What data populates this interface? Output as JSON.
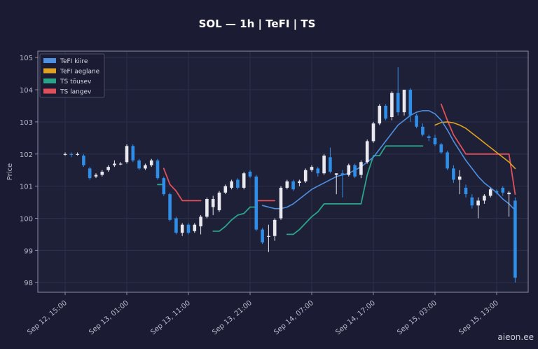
{
  "chart_data": {
    "type": "candlestick",
    "title": "SOL — 1h  |  TeFI  |  TS",
    "ylabel": "Price",
    "ylim": [
      97.7,
      105.2
    ],
    "yticks": [
      98,
      99,
      100,
      101,
      102,
      103,
      104,
      105
    ],
    "grid": true,
    "legend_placement": "top-left",
    "watermark": "aieon.ee",
    "x_ticks": [
      {
        "i": 0,
        "label": "Sep 12, 15:00"
      },
      {
        "i": 10,
        "label": "Sep 13, 01:00"
      },
      {
        "i": 20,
        "label": "Sep 13, 11:00"
      },
      {
        "i": 30,
        "label": "Sep 13, 21:00"
      },
      {
        "i": 40,
        "label": "Sep 14, 07:00"
      },
      {
        "i": 50,
        "label": "Sep 14, 17:00"
      },
      {
        "i": 60,
        "label": "Sep 15, 03:00"
      },
      {
        "i": 70,
        "label": "Sep 15, 13:00"
      }
    ],
    "legend": [
      {
        "key": "tefi_fast",
        "label": "TeFI kiire",
        "color": "#4f8fe0"
      },
      {
        "key": "tefi_slow",
        "label": "TeFI aeglane",
        "color": "#e0a020"
      },
      {
        "key": "ts_up",
        "label": "TS tõusev",
        "color": "#2aa58a"
      },
      {
        "key": "ts_down",
        "label": "TS langev",
        "color": "#e0505a"
      }
    ],
    "colors": {
      "up": "#e8e8ee",
      "down": "#2f8ee8"
    },
    "candles": [
      [
        0,
        102.0,
        102.05,
        101.95,
        102.0
      ],
      [
        1,
        102.0,
        102.05,
        101.9,
        101.98
      ],
      [
        2,
        102.0,
        102.05,
        101.95,
        102.0
      ],
      [
        3,
        101.95,
        102.0,
        101.6,
        101.65
      ],
      [
        4,
        101.55,
        101.6,
        101.2,
        101.25
      ],
      [
        5,
        101.3,
        101.4,
        101.25,
        101.35
      ],
      [
        6,
        101.35,
        101.5,
        101.3,
        101.45
      ],
      [
        7,
        101.5,
        101.65,
        101.45,
        101.6
      ],
      [
        8,
        101.65,
        101.8,
        101.6,
        101.7
      ],
      [
        9,
        101.7,
        101.75,
        101.65,
        101.7
      ],
      [
        10,
        101.75,
        102.3,
        101.7,
        102.25
      ],
      [
        11,
        102.25,
        102.3,
        101.75,
        101.8
      ],
      [
        12,
        101.8,
        101.85,
        101.5,
        101.55
      ],
      [
        13,
        101.55,
        101.7,
        101.5,
        101.65
      ],
      [
        14,
        101.65,
        101.85,
        101.6,
        101.8
      ],
      [
        15,
        101.8,
        101.85,
        101.2,
        101.25
      ],
      [
        16,
        101.25,
        101.3,
        100.7,
        100.75
      ],
      [
        17,
        100.75,
        100.8,
        99.9,
        99.95
      ],
      [
        18,
        100.0,
        100.05,
        99.5,
        99.55
      ],
      [
        19,
        99.55,
        99.85,
        99.45,
        99.8
      ],
      [
        20,
        99.8,
        99.85,
        99.5,
        99.55
      ],
      [
        21,
        99.6,
        99.85,
        99.55,
        99.8
      ],
      [
        22,
        99.75,
        100.1,
        99.5,
        100.05
      ],
      [
        23,
        100.05,
        100.65,
        100.0,
        100.6
      ],
      [
        24,
        100.35,
        100.7,
        100.1,
        100.6
      ],
      [
        25,
        100.25,
        100.85,
        100.2,
        100.8
      ],
      [
        26,
        100.8,
        101.05,
        100.75,
        101.0
      ],
      [
        27,
        100.95,
        101.2,
        100.9,
        101.15
      ],
      [
        28,
        101.2,
        101.25,
        100.9,
        100.95
      ],
      [
        29,
        100.95,
        101.45,
        100.9,
        101.4
      ],
      [
        30,
        101.45,
        101.5,
        101.25,
        101.3
      ],
      [
        31,
        101.3,
        101.35,
        99.6,
        99.65
      ],
      [
        32,
        99.65,
        99.7,
        99.2,
        99.25
      ],
      [
        33,
        99.45,
        99.8,
        98.95,
        99.45
      ],
      [
        34,
        99.45,
        100.0,
        99.3,
        99.95
      ],
      [
        35,
        100.0,
        101.0,
        99.95,
        100.95
      ],
      [
        36,
        100.95,
        101.2,
        100.9,
        101.15
      ],
      [
        37,
        101.15,
        101.2,
        100.85,
        100.9
      ],
      [
        38,
        101.1,
        101.2,
        101.0,
        101.15
      ],
      [
        39,
        101.15,
        101.55,
        101.1,
        101.5
      ],
      [
        40,
        101.5,
        101.65,
        101.45,
        101.6
      ],
      [
        41,
        101.55,
        101.6,
        101.3,
        101.4
      ],
      [
        42,
        101.4,
        102.0,
        101.35,
        101.95
      ],
      [
        43,
        101.9,
        102.2,
        101.4,
        101.45
      ],
      [
        44,
        101.35,
        101.4,
        100.75,
        101.4
      ],
      [
        45,
        101.4,
        101.5,
        100.65,
        101.35
      ],
      [
        46,
        101.35,
        101.7,
        101.3,
        101.65
      ],
      [
        47,
        101.65,
        101.7,
        101.25,
        101.3
      ],
      [
        48,
        101.35,
        101.8,
        101.25,
        101.75
      ],
      [
        49,
        101.75,
        102.45,
        101.7,
        102.4
      ],
      [
        50,
        102.4,
        103.0,
        102.35,
        102.95
      ],
      [
        51,
        102.95,
        103.55,
        102.9,
        103.5
      ],
      [
        52,
        103.5,
        103.55,
        103.05,
        103.1
      ],
      [
        53,
        103.15,
        103.95,
        103.05,
        103.9
      ],
      [
        54,
        103.9,
        104.7,
        103.2,
        103.3
      ],
      [
        55,
        103.3,
        104.0,
        103.2,
        104.0
      ],
      [
        56,
        104.0,
        104.05,
        103.0,
        103.2
      ],
      [
        57,
        103.2,
        103.25,
        102.8,
        102.85
      ],
      [
        58,
        102.85,
        102.95,
        102.55,
        102.6
      ],
      [
        59,
        102.55,
        102.6,
        102.4,
        102.5
      ],
      [
        60,
        102.5,
        102.6,
        102.25,
        102.3
      ],
      [
        61,
        102.3,
        102.35,
        102.0,
        102.05
      ],
      [
        62,
        102.05,
        102.1,
        101.5,
        101.55
      ],
      [
        63,
        101.55,
        101.65,
        101.1,
        101.2
      ],
      [
        64,
        101.2,
        101.5,
        100.75,
        101.3
      ],
      [
        65,
        100.95,
        101.05,
        100.65,
        100.75
      ],
      [
        66,
        100.65,
        100.75,
        100.3,
        100.4
      ],
      [
        67,
        100.4,
        100.65,
        100.0,
        100.55
      ],
      [
        68,
        100.55,
        100.75,
        100.45,
        100.7
      ],
      [
        69,
        100.7,
        100.95,
        100.65,
        100.9
      ],
      [
        70,
        100.85,
        100.9,
        100.75,
        100.8
      ],
      [
        71,
        100.95,
        101.0,
        100.7,
        100.8
      ],
      [
        72,
        100.75,
        100.85,
        100.05,
        100.8
      ],
      [
        73,
        100.55,
        100.65,
        98.0,
        98.15
      ]
    ],
    "tefi_fast": [
      [
        32,
        100.4
      ],
      [
        33,
        100.35
      ],
      [
        34,
        100.3
      ],
      [
        35,
        100.3
      ],
      [
        36,
        100.35
      ],
      [
        37,
        100.45
      ],
      [
        38,
        100.6
      ],
      [
        39,
        100.75
      ],
      [
        40,
        100.9
      ],
      [
        41,
        101.0
      ],
      [
        42,
        101.1
      ],
      [
        43,
        101.2
      ],
      [
        44,
        101.3
      ],
      [
        45,
        101.35
      ],
      [
        46,
        101.4
      ],
      [
        47,
        101.5
      ],
      [
        48,
        101.6
      ],
      [
        49,
        101.75
      ],
      [
        50,
        101.9
      ],
      [
        51,
        102.15
      ],
      [
        52,
        102.4
      ],
      [
        53,
        102.65
      ],
      [
        54,
        102.9
      ],
      [
        55,
        103.05
      ],
      [
        56,
        103.2
      ],
      [
        57,
        103.3
      ],
      [
        58,
        103.35
      ],
      [
        59,
        103.35
      ],
      [
        60,
        103.25
      ],
      [
        61,
        103.05
      ],
      [
        62,
        102.75
      ],
      [
        63,
        102.4
      ],
      [
        64,
        102.1
      ],
      [
        65,
        101.8
      ],
      [
        66,
        101.55
      ],
      [
        67,
        101.3
      ],
      [
        68,
        101.1
      ],
      [
        69,
        100.95
      ],
      [
        70,
        100.8
      ],
      [
        71,
        100.6
      ],
      [
        72,
        100.45
      ],
      [
        73,
        100.25
      ]
    ],
    "tefi_slow": [
      [
        60,
        102.9
      ],
      [
        61,
        102.98
      ],
      [
        62,
        103.0
      ],
      [
        63,
        102.97
      ],
      [
        64,
        102.9
      ],
      [
        65,
        102.8
      ],
      [
        66,
        102.65
      ],
      [
        67,
        102.5
      ],
      [
        68,
        102.35
      ],
      [
        69,
        102.2
      ],
      [
        70,
        102.05
      ],
      [
        71,
        101.9
      ],
      [
        72,
        101.75
      ],
      [
        73,
        101.55
      ]
    ],
    "ts_up": [
      [
        15,
        101.05
      ],
      [
        16,
        101.05
      ],
      [
        null,
        null
      ],
      [
        24,
        99.6
      ],
      [
        25,
        99.6
      ],
      [
        26,
        99.75
      ],
      [
        27,
        99.95
      ],
      [
        28,
        100.1
      ],
      [
        29,
        100.15
      ],
      [
        30,
        100.35
      ],
      [
        31,
        100.35
      ],
      [
        null,
        null
      ],
      [
        36,
        99.5
      ],
      [
        37,
        99.5
      ],
      [
        38,
        99.65
      ],
      [
        39,
        99.85
      ],
      [
        40,
        100.05
      ],
      [
        41,
        100.2
      ],
      [
        42,
        100.45
      ],
      [
        43,
        100.45
      ],
      [
        44,
        100.45
      ],
      [
        45,
        100.45
      ],
      [
        46,
        100.45
      ],
      [
        47,
        100.45
      ],
      [
        48,
        100.45
      ],
      [
        49,
        101.35
      ],
      [
        50,
        101.95
      ],
      [
        51,
        101.95
      ],
      [
        52,
        102.25
      ],
      [
        53,
        102.25
      ],
      [
        54,
        102.25
      ],
      [
        55,
        102.25
      ],
      [
        56,
        102.25
      ],
      [
        57,
        102.25
      ],
      [
        58,
        102.25
      ]
    ],
    "ts_down": [
      [
        16,
        101.55
      ],
      [
        17,
        101.05
      ],
      [
        18,
        100.85
      ],
      [
        19,
        100.55
      ],
      [
        20,
        100.55
      ],
      [
        21,
        100.55
      ],
      [
        22,
        100.55
      ],
      [
        null,
        null
      ],
      [
        31,
        100.55
      ],
      [
        32,
        100.55
      ],
      [
        33,
        100.55
      ],
      [
        34,
        100.55
      ],
      [
        null,
        null
      ],
      [
        61,
        103.55
      ],
      [
        62,
        103.05
      ],
      [
        63,
        102.6
      ],
      [
        64,
        102.3
      ],
      [
        65,
        102.0
      ],
      [
        66,
        102.0
      ],
      [
        67,
        102.0
      ],
      [
        68,
        102.0
      ],
      [
        69,
        102.0
      ],
      [
        70,
        102.0
      ],
      [
        71,
        102.0
      ],
      [
        72,
        102.0
      ],
      [
        73,
        100.75
      ]
    ]
  }
}
